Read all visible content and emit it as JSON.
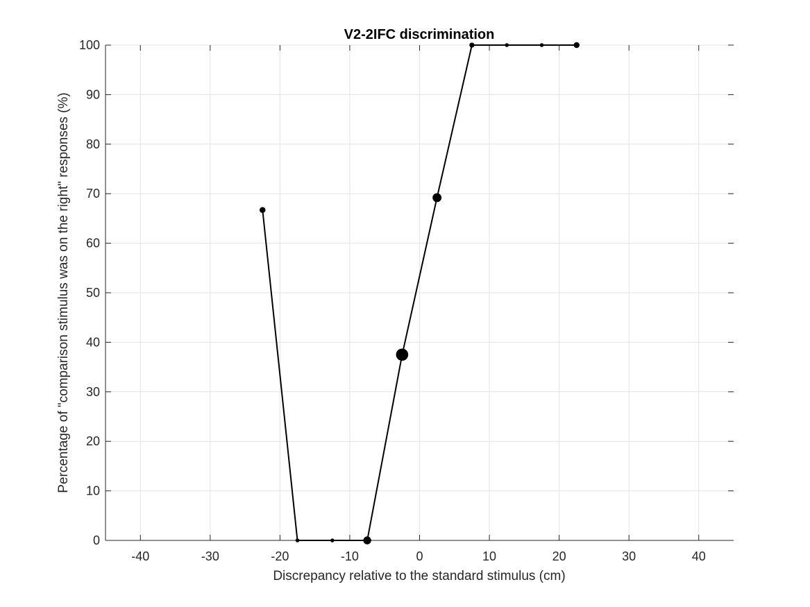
{
  "chart_data": {
    "type": "scatter",
    "title": "V2-2IFC discrimination",
    "xlabel": "Discrepancy relative to the standard stimulus (cm)",
    "ylabel": "Percentage of \"comparison stimulus was on the right\" responses (%)",
    "xlim": [
      -45,
      45
    ],
    "ylim": [
      0,
      100
    ],
    "xticks": [
      -40,
      -30,
      -20,
      -10,
      0,
      10,
      20,
      30,
      40
    ],
    "yticks": [
      0,
      10,
      20,
      30,
      40,
      50,
      60,
      70,
      80,
      90,
      100
    ],
    "grid": true,
    "series": [
      {
        "x": [
          -22.5,
          -17.5,
          -12.5,
          -7.5,
          -2.5,
          2.5,
          7.5,
          12.5,
          17.5,
          22.5
        ],
        "y": [
          66.7,
          0,
          0,
          0,
          37.5,
          69.2,
          100,
          100,
          100,
          100
        ],
        "trials": [
          3,
          1,
          1,
          6,
          16,
          8,
          2,
          1,
          1,
          3
        ],
        "color": "#000000"
      }
    ]
  }
}
